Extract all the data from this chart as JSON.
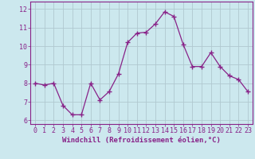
{
  "x": [
    0,
    1,
    2,
    3,
    4,
    5,
    6,
    7,
    8,
    9,
    10,
    11,
    12,
    13,
    14,
    15,
    16,
    17,
    18,
    19,
    20,
    21,
    22,
    23
  ],
  "y": [
    8.0,
    7.9,
    8.0,
    6.8,
    6.3,
    6.3,
    8.0,
    7.1,
    7.55,
    8.5,
    10.2,
    10.7,
    10.75,
    11.2,
    11.85,
    11.6,
    10.1,
    8.9,
    8.9,
    9.65,
    8.9,
    8.4,
    8.2,
    7.55
  ],
  "line_color": "#882288",
  "marker": "+",
  "marker_size": 4,
  "bg_color": "#cce8ee",
  "grid_color": "#b0c8d0",
  "axis_color": "#882288",
  "tick_color": "#882288",
  "xlabel": "Windchill (Refroidissement éolien,°C)",
  "xlabel_fontsize": 6.5,
  "ylabel_ticks": [
    6,
    7,
    8,
    9,
    10,
    11,
    12
  ],
  "xlim": [
    -0.5,
    23.5
  ],
  "ylim": [
    5.8,
    12.4
  ],
  "xticks": [
    0,
    1,
    2,
    3,
    4,
    5,
    6,
    7,
    8,
    9,
    10,
    11,
    12,
    13,
    14,
    15,
    16,
    17,
    18,
    19,
    20,
    21,
    22,
    23
  ],
  "tick_fontsize": 6.0
}
